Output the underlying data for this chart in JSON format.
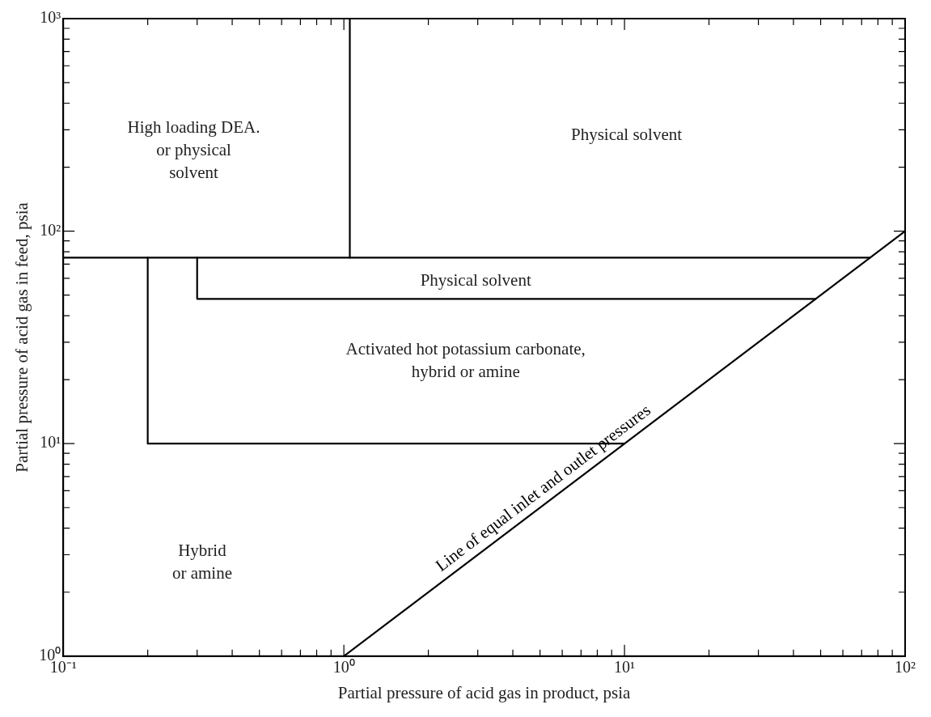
{
  "chart_data": {
    "type": "line",
    "xlabel": "Partial pressure of acid gas in product, psia",
    "ylabel": "Partial pressure of acid gas in feed, psia",
    "log": "xy",
    "grid": false,
    "legend": false,
    "marker": "none",
    "line_style": "solid",
    "xlim": [
      0.1,
      100
    ],
    "ylim": [
      1,
      1000
    ],
    "xticks": [
      {
        "value": 0.1,
        "label": "10⁻¹"
      },
      {
        "value": 0.2,
        "label": null
      },
      {
        "value": 0.3,
        "label": null
      },
      {
        "value": 0.4,
        "label": null
      },
      {
        "value": 0.5,
        "label": null
      },
      {
        "value": 0.6,
        "label": null
      },
      {
        "value": 0.7,
        "label": null
      },
      {
        "value": 0.8,
        "label": null
      },
      {
        "value": 0.9,
        "label": null
      },
      {
        "value": 1,
        "label": "10⁰"
      },
      {
        "value": 2,
        "label": null
      },
      {
        "value": 3,
        "label": null
      },
      {
        "value": 4,
        "label": null
      },
      {
        "value": 5,
        "label": null
      },
      {
        "value": 6,
        "label": null
      },
      {
        "value": 7,
        "label": null
      },
      {
        "value": 8,
        "label": null
      },
      {
        "value": 9,
        "label": null
      },
      {
        "value": 10,
        "label": "10¹"
      },
      {
        "value": 20,
        "label": null
      },
      {
        "value": 30,
        "label": null
      },
      {
        "value": 40,
        "label": null
      },
      {
        "value": 50,
        "label": null
      },
      {
        "value": 60,
        "label": null
      },
      {
        "value": 70,
        "label": null
      },
      {
        "value": 80,
        "label": null
      },
      {
        "value": 90,
        "label": null
      },
      {
        "value": 100,
        "label": "10²"
      }
    ],
    "yticks": [
      {
        "value": 1,
        "label": "10⁰"
      },
      {
        "value": 2,
        "label": null
      },
      {
        "value": 3,
        "label": null
      },
      {
        "value": 4,
        "label": null
      },
      {
        "value": 5,
        "label": null
      },
      {
        "value": 6,
        "label": null
      },
      {
        "value": 7,
        "label": null
      },
      {
        "value": 8,
        "label": null
      },
      {
        "value": 9,
        "label": null
      },
      {
        "value": 10,
        "label": "10¹"
      },
      {
        "value": 20,
        "label": null
      },
      {
        "value": 30,
        "label": null
      },
      {
        "value": 40,
        "label": null
      },
      {
        "value": 50,
        "label": null
      },
      {
        "value": 60,
        "label": null
      },
      {
        "value": 70,
        "label": null
      },
      {
        "value": 80,
        "label": null
      },
      {
        "value": 90,
        "label": null
      },
      {
        "value": 100,
        "label": "10²"
      },
      {
        "value": 200,
        "label": null
      },
      {
        "value": 300,
        "label": null
      },
      {
        "value": 400,
        "label": null
      },
      {
        "value": 500,
        "label": null
      },
      {
        "value": 600,
        "label": null
      },
      {
        "value": 700,
        "label": null
      },
      {
        "value": 800,
        "label": null
      },
      {
        "value": 900,
        "label": null
      },
      {
        "value": 1000,
        "label": "10³"
      }
    ],
    "series": [
      {
        "color": "#000000",
        "x": [
          0.1,
          75
        ],
        "values": [
          75,
          75
        ]
      },
      {
        "color": "#000000",
        "x": [
          1.05,
          1.05
        ],
        "values": [
          75,
          1000
        ]
      },
      {
        "color": "#000000",
        "x": [
          0.2,
          0.2,
          10
        ],
        "values": [
          75,
          10,
          10
        ]
      },
      {
        "color": "#000000",
        "x": [
          0.3,
          0.3,
          48
        ],
        "values": [
          75,
          48,
          48
        ]
      },
      {
        "name": "Line of equal inlet and outlet pressures",
        "color": "#000000",
        "x": [
          1,
          100
        ],
        "values": [
          1,
          100
        ]
      }
    ],
    "annotations": [
      "High loading DEA.\nor physical\nsolvent",
      "Physical solvent",
      "Physical solvent",
      "Activated hot potassium carbonate,\nhybrid or amine",
      "Hybrid\nor amine"
    ]
  }
}
